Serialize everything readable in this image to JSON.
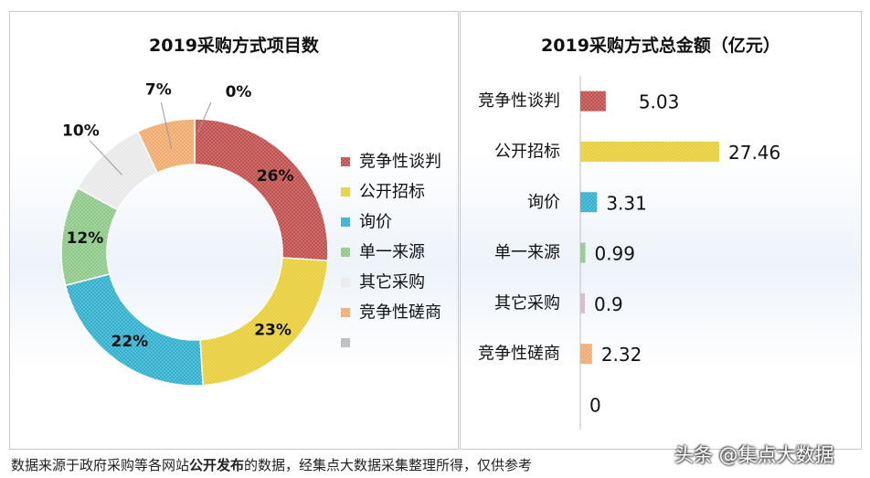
{
  "chart_data": [
    {
      "type": "pie",
      "title": "2019采购方式项目数",
      "categories": [
        "竞争性谈判",
        "公开招标",
        "询价",
        "单一来源",
        "其它采购",
        "竞争性磋商",
        ""
      ],
      "values": [
        26,
        23,
        22,
        12,
        10,
        7,
        0
      ],
      "value_labels": [
        "26%",
        "23%",
        "22%",
        "12%",
        "10%",
        "7%",
        "0%"
      ],
      "legend_position": "right",
      "colors": [
        "#c0504d",
        "#e8cf3a",
        "#33b0ce",
        "#8fc98a",
        "#e9e9e9",
        "#f0ab6e",
        "#bbbbbb"
      ]
    },
    {
      "type": "bar",
      "orientation": "horizontal",
      "title": "2019采购方式总金额（亿元）",
      "categories": [
        "竞争性谈判",
        "公开招标",
        "询价",
        "单一来源",
        "其它采购",
        "竞争性磋商",
        ""
      ],
      "values": [
        5.03,
        27.46,
        3.31,
        0.99,
        0.9,
        2.32,
        0
      ],
      "value_labels": [
        "5.03",
        "27.46",
        "3.31",
        "0.99",
        "0.9",
        "2.32",
        "0"
      ],
      "colors": [
        "#c0504d",
        "#e8cf3a",
        "#33b0ce",
        "#8fc98a",
        "#d8b5c8",
        "#f0ab6e",
        "#bbbbbb"
      ]
    }
  ],
  "footer": {
    "prefix": "数据来源于政府采购等各网站",
    "bold": "公开发布",
    "suffix": "的数据，经集点大数据采集整理所得，仅供参考"
  },
  "watermark": "头条 @集点大数据"
}
